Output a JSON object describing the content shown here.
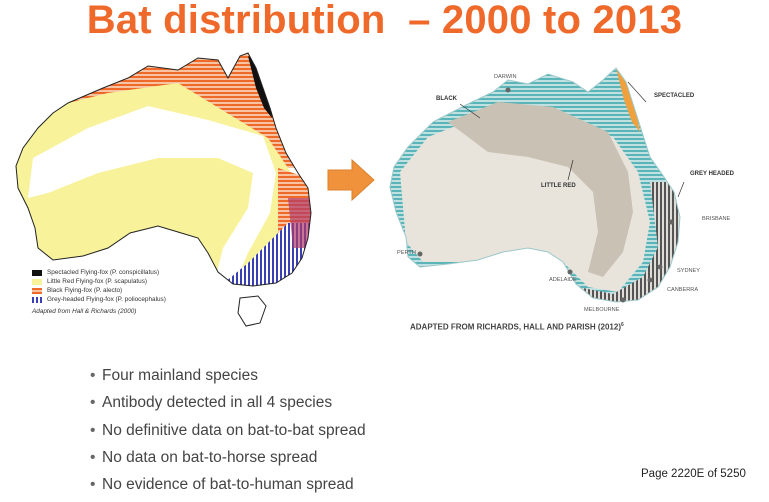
{
  "title": "Bat distribution  – 2000 to 2013",
  "left_map": {
    "legend": [
      {
        "label": "Spectacled Flying-fox (P. conspicillatus)",
        "color": "#111111"
      },
      {
        "label": "Little Red Flying-fox (P. scapulatus)",
        "color": "#f8f29a"
      },
      {
        "label": "Black Flying-fox (P. alecto)",
        "color": "#ef6a2a"
      },
      {
        "label": "Grey-headed Flying-fox (P. poliocephalus)",
        "color": "#3b3fb5"
      }
    ],
    "source_note": "Adapted from Hall & Richards (2000)"
  },
  "arrow": {
    "color": "#f0913b",
    "icon": "right-arrow-icon"
  },
  "right_map": {
    "species_labels": {
      "black": "BLACK",
      "little_red": "LITTLE RED",
      "spectacled": "SPECTACLED",
      "grey_headed": "GREY HEADED"
    },
    "cities": {
      "darwin": "DARWIN",
      "brisbane": "BRISBANE",
      "sydney": "SYDNEY",
      "canberra": "CANBERRA",
      "melbourne": "MELBOURNE",
      "adelaide": "ADELAIDE",
      "perth": "PERTH"
    },
    "caption": "ADAPTED FROM RICHARDS, HALL AND PARISH (2012)",
    "caption_ref": "6",
    "colors": {
      "black": "#5bb5b8",
      "little_red": "#c9c1b4",
      "spectacled": "#f0a03c",
      "grey_headed": "#555555"
    }
  },
  "bullets": [
    "Four mainland species",
    "Antibody detected in all 4 species",
    "No definitive data on bat-to-bat spread",
    "No data on bat-to-horse spread",
    "No evidence of bat-to-human spread"
  ],
  "bullet_glyph": "•",
  "page_number": "Page 2220E of 5250"
}
